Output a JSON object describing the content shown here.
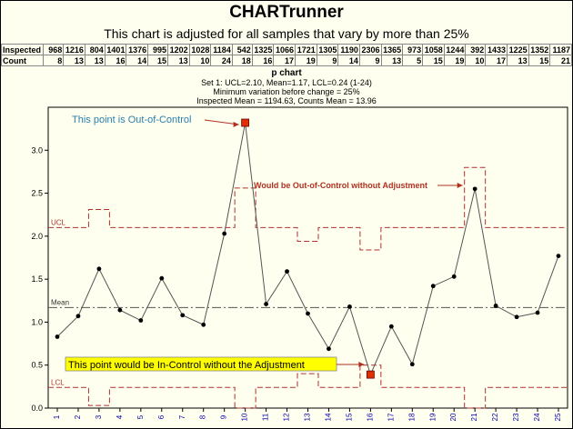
{
  "header": {
    "app_title": "CHARTrunner",
    "subtitle": "This chart is adjusted for all samples that vary by more than 25%"
  },
  "table": {
    "row_labels": [
      "Inspected",
      "Count"
    ],
    "inspected": [
      968,
      1216,
      804,
      1401,
      1376,
      995,
      1202,
      1028,
      1184,
      542,
      1325,
      1066,
      1721,
      1305,
      1190,
      2306,
      1365,
      973,
      1058,
      1244,
      392,
      1433,
      1225,
      1352,
      1187
    ],
    "count": [
      8,
      13,
      13,
      16,
      14,
      15,
      13,
      10,
      24,
      18,
      16,
      17,
      19,
      9,
      14,
      9,
      13,
      5,
      15,
      19,
      10,
      17,
      13,
      15,
      21
    ]
  },
  "colors": {
    "background": "#fffff0",
    "line": "#555555",
    "point": "#000000",
    "limit": "#b03030",
    "mean": "#555555",
    "ooc_marker": "#e03000",
    "annot_blue": "#2a7fb0",
    "annot_red": "#b03020",
    "highlight": "#ffff00"
  },
  "chart_data": {
    "type": "line",
    "title": "p chart",
    "info_lines": [
      "Set 1: UCL=2.10, Mean=1.17, LCL=0.24 (1-24)",
      "Minimum variation before change = 25%",
      "Inspected Mean = 1194.63, Counts Mean = 13.96"
    ],
    "x": [
      1,
      2,
      3,
      4,
      5,
      6,
      7,
      8,
      9,
      10,
      11,
      12,
      13,
      14,
      15,
      16,
      17,
      18,
      19,
      20,
      21,
      22,
      23,
      24,
      25
    ],
    "values": [
      0.83,
      1.07,
      1.62,
      1.14,
      1.02,
      1.51,
      1.08,
      0.97,
      2.03,
      3.32,
      1.21,
      1.59,
      1.1,
      0.69,
      1.18,
      0.39,
      0.95,
      0.51,
      1.42,
      1.53,
      2.55,
      1.19,
      1.06,
      1.11,
      1.77
    ],
    "mean": 1.17,
    "ucl": [
      2.1,
      2.1,
      2.31,
      2.1,
      2.1,
      2.1,
      2.1,
      2.1,
      2.1,
      2.56,
      2.1,
      2.1,
      1.94,
      2.1,
      2.1,
      1.84,
      2.1,
      2.1,
      2.1,
      2.1,
      2.8,
      2.1,
      2.1,
      2.1,
      2.1
    ],
    "lcl": [
      0.24,
      0.24,
      0.03,
      0.24,
      0.24,
      0.24,
      0.24,
      0.24,
      0.24,
      0.0,
      0.24,
      0.24,
      0.4,
      0.24,
      0.24,
      0.5,
      0.24,
      0.24,
      0.24,
      0.24,
      0.0,
      0.24,
      0.24,
      0.24,
      0.24
    ],
    "ylim": [
      0,
      3.5
    ],
    "yticks": [
      0.0,
      0.5,
      1.0,
      1.5,
      2.0,
      2.5,
      3.0
    ],
    "ytick_labels": [
      "0.0",
      "0.5",
      "1.0",
      "1.5",
      "2.0",
      "2.5",
      "3.0"
    ],
    "limit_labels": {
      "ucl": "UCL",
      "mean": "Mean",
      "lcl": "LCL"
    },
    "highlight_points": {
      "out_of_control": 10,
      "in_control_without_adjustment": 16
    },
    "annotations": [
      {
        "text": "This point is Out-of-Control",
        "target_x": 10,
        "style": "blue"
      },
      {
        "text": "Would be Out-of-Control without Adjustment",
        "target_x": 21,
        "style": "red"
      },
      {
        "text": "This point would be In-Control without the Adjustment",
        "target_x": 16,
        "style": "highlight"
      }
    ]
  }
}
